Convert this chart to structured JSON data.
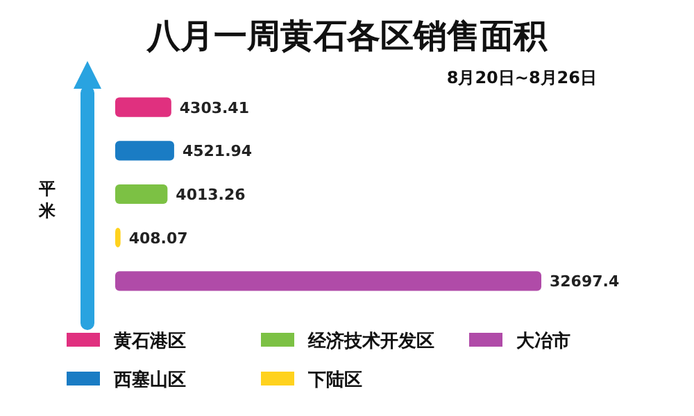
{
  "chart_data": {
    "type": "bar",
    "orientation": "horizontal",
    "title": "八月一周黄石各区销售面积",
    "subtitle": "8月20日~8月26日",
    "categories": [
      null,
      null,
      null,
      null,
      null
    ],
    "data_labels": true,
    "values": [
      4303.41,
      4521.94,
      4013.26,
      408.07,
      32697.4
    ],
    "colors": [
      "#e0307f",
      "#1a7cc4",
      "#7cc144",
      "#ffd21e",
      "#b04ba8"
    ],
    "annotations": [
      "平米",
      "黄石港区",
      "西塞山区",
      "经济技术开发区",
      "下陆区",
      "大冶市"
    ]
  }
}
